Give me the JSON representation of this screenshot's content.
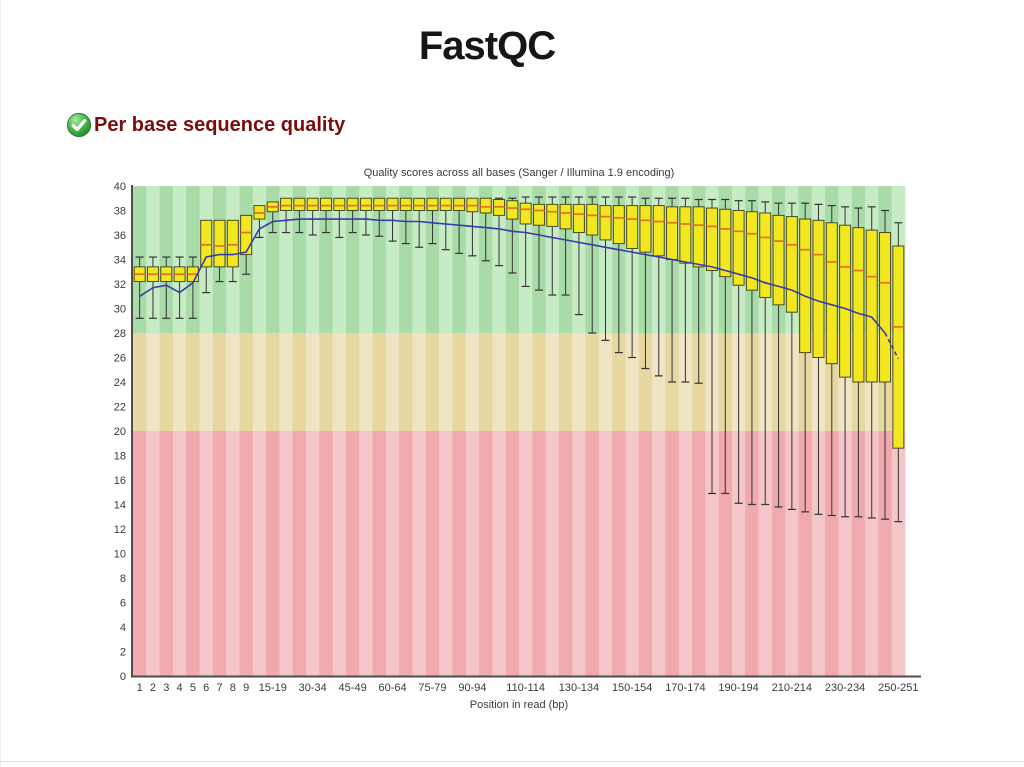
{
  "page": {
    "title": "FastQC"
  },
  "section": {
    "status": "pass",
    "header": "Per base sequence quality"
  },
  "chart_data": {
    "type": "boxplot",
    "title": "Quality scores across all bases (Sanger / Illumina 1.9 encoding)",
    "xlabel": "Position in read (bp)",
    "ylabel": "",
    "ylim": [
      0,
      40
    ],
    "yticks": [
      0,
      2,
      4,
      6,
      8,
      10,
      12,
      14,
      16,
      18,
      20,
      22,
      24,
      26,
      28,
      30,
      32,
      34,
      36,
      38,
      40
    ],
    "grid": false,
    "legend": "none",
    "background_zones": [
      {
        "name": "good",
        "from": 28,
        "to": 40,
        "stripe_dark": "#a8dba8",
        "stripe_light": "#c7ecc5"
      },
      {
        "name": "medium",
        "from": 20,
        "to": 28,
        "stripe_dark": "#e7d7a0",
        "stripe_light": "#efe5c4"
      },
      {
        "name": "poor",
        "from": 0,
        "to": 20,
        "stripe_dark": "#efa9af",
        "stripe_light": "#f4c5c9"
      }
    ],
    "colors": {
      "box_fill": "#f3e820",
      "box_stroke": "#4a4a1e",
      "median": "#e2731c",
      "whisker": "#333333",
      "mean_line": "#3a3aae",
      "axis": "#4d4d4d",
      "tick_text": "#3b3b3b"
    },
    "boxes": [
      {
        "label": "1",
        "low": 29.2,
        "q1": 32.2,
        "median": 32.8,
        "q3": 33.4,
        "high": 34.2,
        "mean": 31.0
      },
      {
        "label": "2",
        "low": 29.2,
        "q1": 32.2,
        "median": 32.8,
        "q3": 33.4,
        "high": 34.2,
        "mean": 31.7
      },
      {
        "label": "3",
        "low": 29.2,
        "q1": 32.2,
        "median": 32.8,
        "q3": 33.4,
        "high": 34.2,
        "mean": 31.9
      },
      {
        "label": "4",
        "low": 29.2,
        "q1": 32.2,
        "median": 32.8,
        "q3": 33.4,
        "high": 34.2,
        "mean": 31.3
      },
      {
        "label": "5",
        "low": 29.2,
        "q1": 32.2,
        "median": 32.8,
        "q3": 33.4,
        "high": 34.2,
        "mean": 32.1
      },
      {
        "label": "6",
        "low": 31.3,
        "q1": 33.4,
        "median": 35.2,
        "q3": 37.2,
        "high": 37.2,
        "mean": 34.2
      },
      {
        "label": "7",
        "low": 32.2,
        "q1": 33.4,
        "median": 35.1,
        "q3": 37.2,
        "high": 37.2,
        "mean": 34.4
      },
      {
        "label": "8",
        "low": 32.2,
        "q1": 33.4,
        "median": 35.2,
        "q3": 37.2,
        "high": 37.2,
        "mean": 34.4
      },
      {
        "label": "9",
        "low": 32.8,
        "q1": 34.4,
        "median": 36.2,
        "q3": 37.6,
        "high": 37.6,
        "mean": 34.6
      },
      {
        "label": "",
        "low": 35.8,
        "q1": 37.3,
        "median": 37.8,
        "q3": 38.4,
        "high": 38.4,
        "mean": 36.5
      },
      {
        "label": "15-19",
        "low": 36.2,
        "q1": 37.9,
        "median": 38.3,
        "q3": 38.7,
        "high": 38.7,
        "mean": 37.1
      },
      {
        "label": "",
        "low": 36.2,
        "q1": 38.0,
        "median": 38.4,
        "q3": 39.0,
        "high": 39.0,
        "mean": 37.2
      },
      {
        "label": "",
        "low": 36.2,
        "q1": 38.0,
        "median": 38.4,
        "q3": 39.0,
        "high": 39.0,
        "mean": 37.3
      },
      {
        "label": "30-34",
        "low": 36.0,
        "q1": 38.0,
        "median": 38.4,
        "q3": 39.0,
        "high": 39.0,
        "mean": 37.3
      },
      {
        "label": "",
        "low": 36.2,
        "q1": 38.0,
        "median": 38.4,
        "q3": 39.0,
        "high": 39.0,
        "mean": 37.3
      },
      {
        "label": "",
        "low": 35.8,
        "q1": 38.0,
        "median": 38.4,
        "q3": 39.0,
        "high": 39.0,
        "mean": 37.3
      },
      {
        "label": "45-49",
        "low": 36.2,
        "q1": 38.0,
        "median": 38.4,
        "q3": 39.0,
        "high": 39.0,
        "mean": 37.3
      },
      {
        "label": "",
        "low": 36.0,
        "q1": 38.0,
        "median": 38.4,
        "q3": 39.0,
        "high": 39.0,
        "mean": 37.3
      },
      {
        "label": "",
        "low": 35.9,
        "q1": 38.0,
        "median": 38.4,
        "q3": 39.0,
        "high": 39.0,
        "mean": 37.2
      },
      {
        "label": "60-64",
        "low": 35.5,
        "q1": 38.0,
        "median": 38.4,
        "q3": 39.0,
        "high": 39.0,
        "mean": 37.2
      },
      {
        "label": "",
        "low": 35.3,
        "q1": 38.0,
        "median": 38.4,
        "q3": 39.0,
        "high": 39.0,
        "mean": 37.1
      },
      {
        "label": "",
        "low": 35.0,
        "q1": 38.0,
        "median": 38.4,
        "q3": 39.0,
        "high": 39.0,
        "mean": 37.1
      },
      {
        "label": "75-79",
        "low": 35.3,
        "q1": 38.0,
        "median": 38.4,
        "q3": 39.0,
        "high": 39.0,
        "mean": 37.0
      },
      {
        "label": "",
        "low": 34.8,
        "q1": 38.0,
        "median": 38.4,
        "q3": 39.0,
        "high": 39.0,
        "mean": 36.9
      },
      {
        "label": "",
        "low": 34.5,
        "q1": 38.0,
        "median": 38.4,
        "q3": 39.0,
        "high": 39.0,
        "mean": 36.8
      },
      {
        "label": "90-94",
        "low": 34.3,
        "q1": 37.9,
        "median": 38.4,
        "q3": 39.0,
        "high": 39.0,
        "mean": 36.7
      },
      {
        "label": "",
        "low": 33.9,
        "q1": 37.8,
        "median": 38.3,
        "q3": 39.0,
        "high": 39.0,
        "mean": 36.6
      },
      {
        "label": "",
        "low": 33.5,
        "q1": 37.6,
        "median": 38.3,
        "q3": 38.9,
        "high": 39.0,
        "mean": 36.5
      },
      {
        "label": "",
        "low": 32.9,
        "q1": 37.3,
        "median": 38.2,
        "q3": 38.8,
        "high": 39.0,
        "mean": 36.3
      },
      {
        "label": "110-114",
        "low": 31.8,
        "q1": 36.9,
        "median": 38.1,
        "q3": 38.6,
        "high": 39.1,
        "mean": 36.2
      },
      {
        "label": "",
        "low": 31.5,
        "q1": 36.8,
        "median": 38.0,
        "q3": 38.5,
        "high": 39.1,
        "mean": 36.0
      },
      {
        "label": "",
        "low": 31.1,
        "q1": 36.7,
        "median": 37.9,
        "q3": 38.5,
        "high": 39.1,
        "mean": 35.8
      },
      {
        "label": "",
        "low": 31.1,
        "q1": 36.5,
        "median": 37.8,
        "q3": 38.5,
        "high": 39.1,
        "mean": 35.6
      },
      {
        "label": "130-134",
        "low": 29.5,
        "q1": 36.2,
        "median": 37.7,
        "q3": 38.5,
        "high": 39.1,
        "mean": 35.4
      },
      {
        "label": "",
        "low": 28.0,
        "q1": 36.0,
        "median": 37.6,
        "q3": 38.5,
        "high": 39.1,
        "mean": 35.2
      },
      {
        "label": "",
        "low": 27.4,
        "q1": 35.6,
        "median": 37.5,
        "q3": 38.4,
        "high": 39.1,
        "mean": 35.0
      },
      {
        "label": "",
        "low": 26.4,
        "q1": 35.3,
        "median": 37.4,
        "q3": 38.4,
        "high": 39.1,
        "mean": 34.8
      },
      {
        "label": "150-154",
        "low": 26.0,
        "q1": 34.9,
        "median": 37.3,
        "q3": 38.4,
        "high": 39.1,
        "mean": 34.6
      },
      {
        "label": "",
        "low": 25.1,
        "q1": 34.6,
        "median": 37.2,
        "q3": 38.4,
        "high": 39.0,
        "mean": 34.4
      },
      {
        "label": "",
        "low": 24.5,
        "q1": 34.3,
        "median": 37.1,
        "q3": 38.4,
        "high": 39.0,
        "mean": 34.2
      },
      {
        "label": "",
        "low": 24.0,
        "q1": 34.0,
        "median": 37.0,
        "q3": 38.3,
        "high": 39.0,
        "mean": 34.0
      },
      {
        "label": "170-174",
        "low": 24.0,
        "q1": 33.7,
        "median": 36.9,
        "q3": 38.3,
        "high": 39.0,
        "mean": 33.8
      },
      {
        "label": "",
        "low": 23.9,
        "q1": 33.4,
        "median": 36.8,
        "q3": 38.3,
        "high": 38.9,
        "mean": 33.6
      },
      {
        "label": "",
        "low": 14.9,
        "q1": 33.1,
        "median": 36.7,
        "q3": 38.2,
        "high": 38.9,
        "mean": 33.4
      },
      {
        "label": "",
        "low": 14.9,
        "q1": 32.6,
        "median": 36.5,
        "q3": 38.1,
        "high": 38.9,
        "mean": 33.1
      },
      {
        "label": "190-194",
        "low": 14.1,
        "q1": 31.9,
        "median": 36.3,
        "q3": 38.0,
        "high": 38.8,
        "mean": 32.8
      },
      {
        "label": "",
        "low": 14.0,
        "q1": 31.5,
        "median": 36.1,
        "q3": 37.9,
        "high": 38.8,
        "mean": 32.5
      },
      {
        "label": "",
        "low": 14.0,
        "q1": 30.9,
        "median": 35.8,
        "q3": 37.8,
        "high": 38.7,
        "mean": 32.1
      },
      {
        "label": "",
        "low": 13.8,
        "q1": 30.3,
        "median": 35.5,
        "q3": 37.6,
        "high": 38.6,
        "mean": 31.8
      },
      {
        "label": "210-214",
        "low": 13.6,
        "q1": 29.7,
        "median": 35.2,
        "q3": 37.5,
        "high": 38.6,
        "mean": 31.5
      },
      {
        "label": "",
        "low": 13.4,
        "q1": 26.4,
        "median": 34.8,
        "q3": 37.3,
        "high": 38.6,
        "mean": 31.0
      },
      {
        "label": "",
        "low": 13.2,
        "q1": 26.0,
        "median": 34.4,
        "q3": 37.2,
        "high": 38.5,
        "mean": 30.6
      },
      {
        "label": "",
        "low": 13.1,
        "q1": 25.5,
        "median": 33.8,
        "q3": 37.0,
        "high": 38.4,
        "mean": 30.3
      },
      {
        "label": "230-234",
        "low": 13.0,
        "q1": 24.4,
        "median": 33.4,
        "q3": 36.8,
        "high": 38.3,
        "mean": 30.0
      },
      {
        "label": "",
        "low": 13.0,
        "q1": 24.0,
        "median": 33.1,
        "q3": 36.6,
        "high": 38.2,
        "mean": 29.6
      },
      {
        "label": "",
        "low": 12.9,
        "q1": 24.0,
        "median": 32.6,
        "q3": 36.4,
        "high": 38.3,
        "mean": 29.3
      },
      {
        "label": "",
        "low": 12.8,
        "q1": 24.0,
        "median": 32.1,
        "q3": 36.2,
        "high": 38.0,
        "mean": 28.0
      },
      {
        "label": "250-251",
        "low": 12.6,
        "q1": 18.6,
        "median": 28.5,
        "q3": 35.1,
        "high": 37.0,
        "mean": 25.9
      }
    ]
  }
}
